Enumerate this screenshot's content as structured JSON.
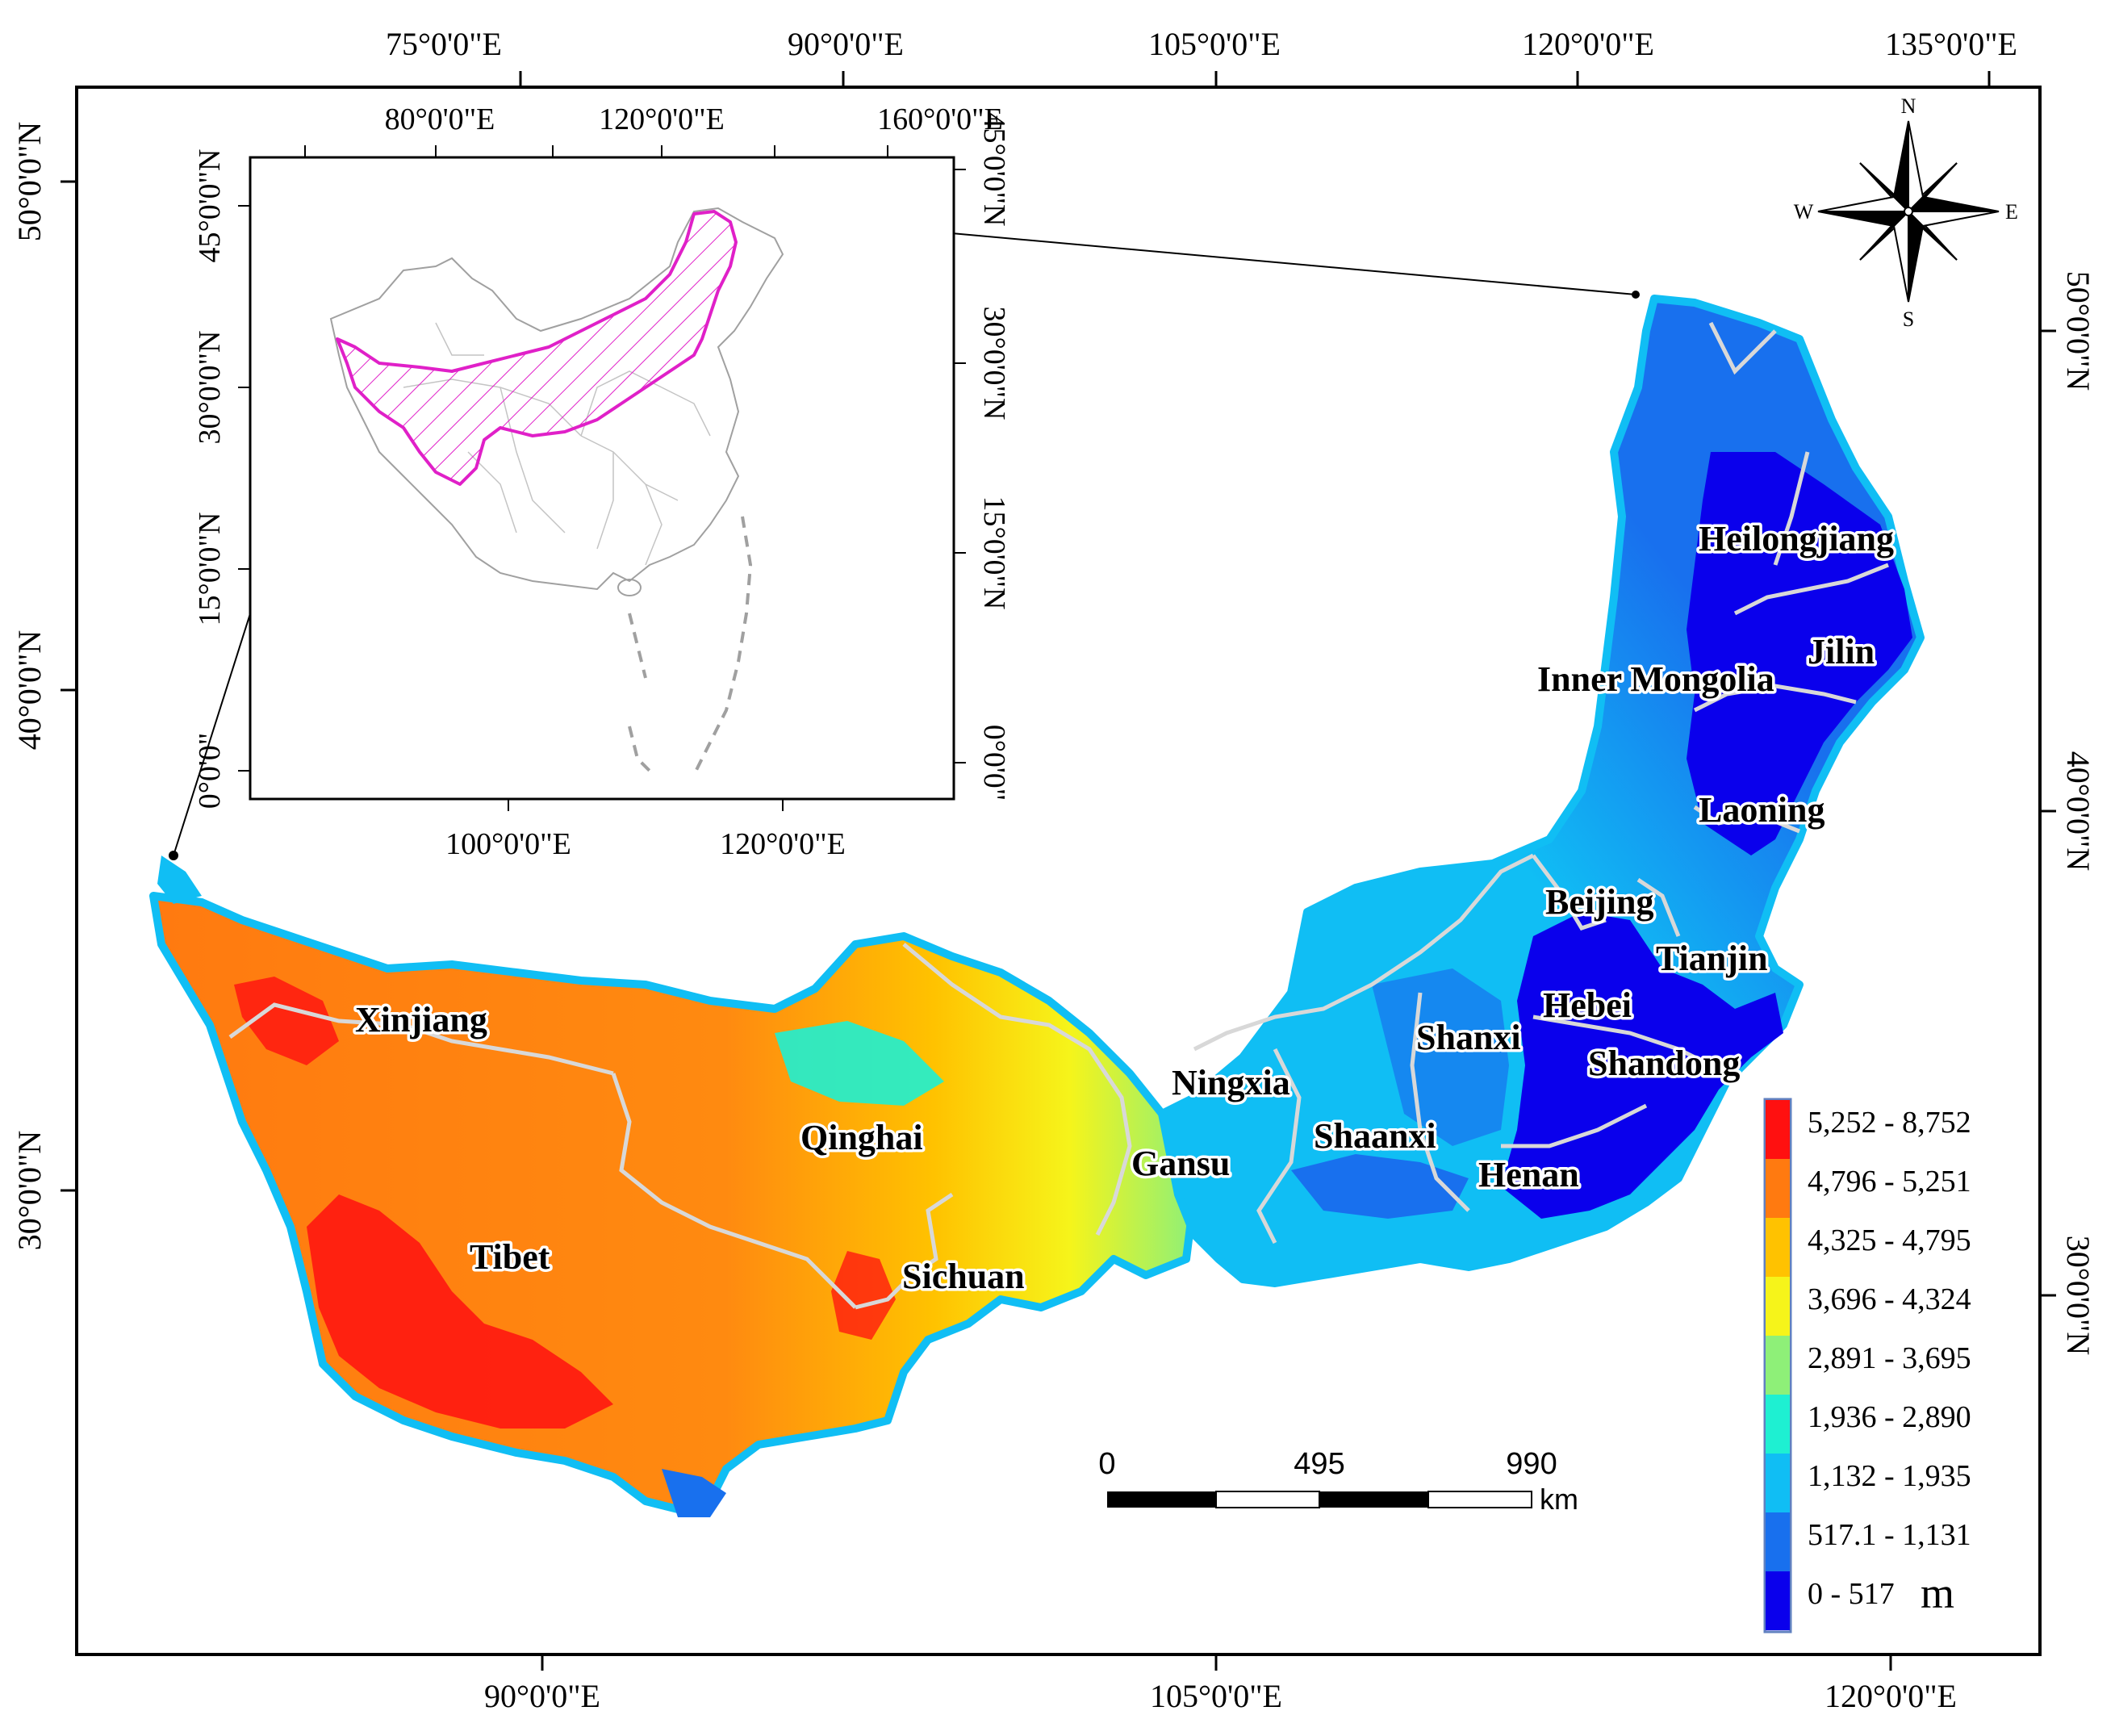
{
  "main_map": {
    "top_lon_labels": [
      "75°0'0\"E",
      "90°0'0\"E",
      "105°0'0\"E",
      "120°0'0\"E",
      "135°0'0\"E"
    ],
    "bottom_lon_labels": [
      "90°0'0\"E",
      "105°0'0\"E",
      "120°0'0\"E"
    ],
    "left_lat_labels": [
      "50°0'0\"N",
      "40°0'0\"N",
      "30°0'0\"N"
    ],
    "right_lat_labels": [
      "50°0'0\"N",
      "40°0'0\"N",
      "30°0'0\"N"
    ]
  },
  "inset_map": {
    "top_lon_labels": [
      "80°0'0\"E",
      "120°0'0\"E",
      "160°0'0\"E"
    ],
    "bottom_lon_labels": [
      "100°0'0\"E",
      "120°0'0\"E"
    ],
    "left_lat_labels": [
      "45°0'0\"N",
      "30°0'0\"N",
      "15°0'0\"N",
      "0°0'0\""
    ],
    "right_lat_labels": [
      "45°0'0\"N",
      "30°0'0\"N",
      "15°0'0\"N",
      "0°0'0\""
    ],
    "highlight_color": "#e020c8"
  },
  "provinces": {
    "heilongjiang": "Heilongjiang",
    "jilin": "Jilin",
    "inner_mongolia": "Inner Mongolia",
    "laoning": "Laoning",
    "beijing": "Beijing",
    "tianjin": "Tianjin",
    "hebei": "Hebei",
    "shanxi": "Shanxi",
    "shandong": "Shandong",
    "ningxia": "Ningxia",
    "shaanxi": "Shaanxi",
    "gansu": "Gansu",
    "henan": "Henan",
    "xinjiang": "Xinjiang",
    "qinghai": "Qinghai",
    "tibet": "Tibet",
    "sichuan": "Sichuan"
  },
  "compass": {
    "n": "N",
    "s": "S",
    "e": "E",
    "w": "W"
  },
  "scale_bar": {
    "labels": [
      "0",
      "495",
      "990"
    ],
    "unit": "km"
  },
  "legend": {
    "unit": "m",
    "classes": [
      {
        "label": "5,252 - 8,752",
        "color": "#ff1010"
      },
      {
        "label": "4,796 - 5,251",
        "color": "#ff7a10"
      },
      {
        "label": "4,325 - 4,795",
        "color": "#ffc200"
      },
      {
        "label": "3,696 - 4,324",
        "color": "#f6f41a"
      },
      {
        "label": "2,891 - 3,695",
        "color": "#8ef078"
      },
      {
        "label": "1,936 - 2,890",
        "color": "#1ef0d2"
      },
      {
        "label": "1,132 - 1,935",
        "color": "#10bef4"
      },
      {
        "label": "517.1 - 1,131",
        "color": "#1870ee"
      },
      {
        "label": "0 - 517",
        "color": "#0a00ec"
      }
    ]
  }
}
